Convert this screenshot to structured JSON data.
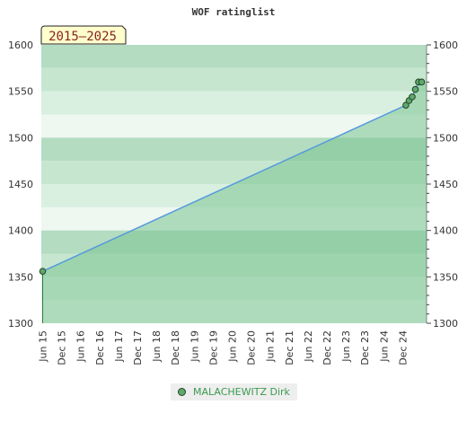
{
  "chart_data": {
    "type": "area",
    "title": "WOF ratinglist",
    "period_label": "2015–2025",
    "ylim": [
      1300,
      1600
    ],
    "y_ticks": [
      1300,
      1350,
      1400,
      1450,
      1500,
      1550,
      1600
    ],
    "x_ticks": [
      "Jun 15",
      "Dec 15",
      "Jun 16",
      "Dec 16",
      "Jun 17",
      "Dec 17",
      "Jun 18",
      "Dec 18",
      "Jun 19",
      "Dec 19",
      "Jun 20",
      "Dec 20",
      "Jun 21",
      "Dec 21",
      "Jun 22",
      "Dec 22",
      "Jun 23",
      "Dec 23",
      "Jun 24",
      "Dec 24"
    ],
    "series": [
      {
        "name": "MALACHEWITZ Dirk",
        "points": [
          {
            "x": "2015-06",
            "y": 1356
          },
          {
            "x": "2025-01",
            "y": 1535
          },
          {
            "x": "2025-02",
            "y": 1540
          },
          {
            "x": "2025-03",
            "y": 1544
          },
          {
            "x": "2025-04",
            "y": 1552
          },
          {
            "x": "2025-05",
            "y": 1560
          },
          {
            "x": "2025-06",
            "y": 1560
          }
        ]
      }
    ],
    "colors": {
      "line": "#5599dd",
      "area": "#7cc494",
      "band_dark": "#b3dcc0",
      "band_light": "#eef7f0",
      "marker": "#5fa86f",
      "legend_text": "#3a9a4e",
      "badge_fill": "#ffffcc",
      "badge_text": "#882222"
    },
    "legend": {
      "placement": "bottom-center"
    }
  }
}
